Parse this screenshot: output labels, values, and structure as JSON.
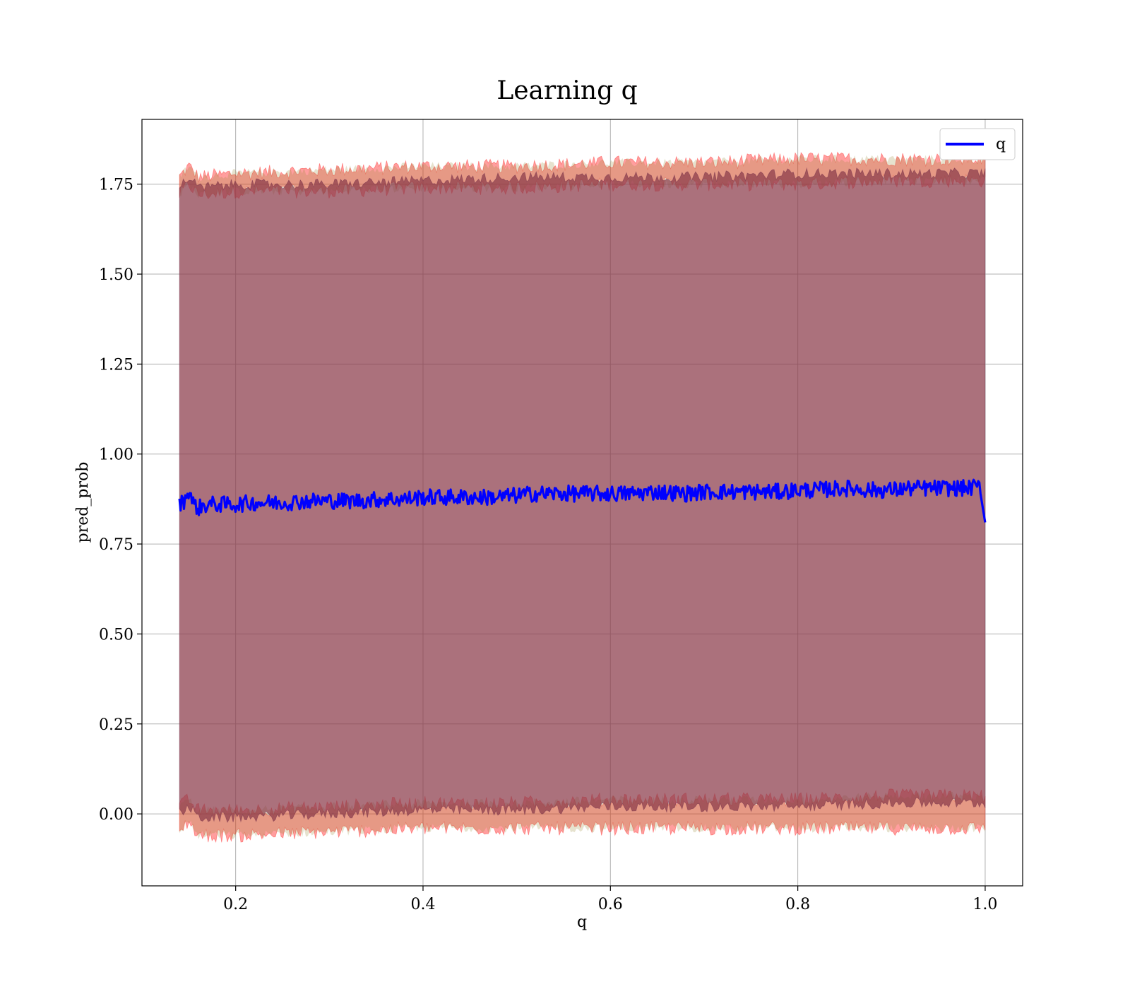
{
  "chart_data": {
    "type": "line",
    "title": "Learning q",
    "xlabel": "q",
    "ylabel": "pred_prob",
    "xlim": [
      0.1,
      1.04
    ],
    "ylim": [
      -0.2,
      1.93
    ],
    "xticks": [
      0.2,
      0.4,
      0.6,
      0.8,
      1.0
    ],
    "xtick_labels": [
      "0.2",
      "0.4",
      "0.6",
      "0.8",
      "1.0"
    ],
    "yticks": [
      0.0,
      0.25,
      0.5,
      0.75,
      1.0,
      1.25,
      1.5,
      1.75
    ],
    "ytick_labels": [
      "0.00",
      "0.25",
      "0.50",
      "0.75",
      "1.00",
      "1.25",
      "1.50",
      "1.75"
    ],
    "grid": true,
    "legend_position": "top-right",
    "series": [
      {
        "name": "q",
        "color": "#0000ff",
        "x": [
          0.14,
          0.145,
          0.15,
          0.155,
          0.16,
          0.17,
          0.18,
          0.2,
          0.22,
          0.25,
          0.28,
          0.3,
          0.33,
          0.36,
          0.38,
          0.4,
          0.42,
          0.45,
          0.48,
          0.5,
          0.52,
          0.55,
          0.58,
          0.6,
          0.62,
          0.65,
          0.68,
          0.7,
          0.72,
          0.75,
          0.78,
          0.8,
          0.82,
          0.85,
          0.88,
          0.9,
          0.92,
          0.95,
          0.98,
          0.995,
          1.0
        ],
        "y": [
          0.86,
          0.87,
          0.9,
          0.86,
          0.85,
          0.86,
          0.86,
          0.86,
          0.865,
          0.865,
          0.87,
          0.87,
          0.87,
          0.875,
          0.875,
          0.88,
          0.88,
          0.88,
          0.88,
          0.885,
          0.89,
          0.89,
          0.89,
          0.89,
          0.89,
          0.895,
          0.89,
          0.895,
          0.895,
          0.895,
          0.895,
          0.9,
          0.9,
          0.905,
          0.9,
          0.9,
          0.905,
          0.905,
          0.905,
          0.91,
          0.81
        ]
      }
    ],
    "bands": [
      {
        "role": "outer-upper",
        "color": "#ff0000",
        "x": [
          0.14,
          0.15,
          0.16,
          0.2,
          0.3,
          0.4,
          0.5,
          0.6,
          0.7,
          0.8,
          0.9,
          1.0
        ],
        "low": [
          1.72,
          1.75,
          1.72,
          1.73,
          1.73,
          1.74,
          1.74,
          1.75,
          1.75,
          1.75,
          1.76,
          1.76
        ],
        "high": [
          1.77,
          1.8,
          1.77,
          1.78,
          1.79,
          1.8,
          1.8,
          1.81,
          1.81,
          1.82,
          1.82,
          1.82
        ]
      },
      {
        "role": "outer-lower",
        "color": "#ff0000",
        "x": [
          0.14,
          0.15,
          0.16,
          0.2,
          0.3,
          0.4,
          0.5,
          0.6,
          0.7,
          0.8,
          0.9,
          1.0
        ],
        "low": [
          -0.05,
          -0.02,
          -0.06,
          -0.06,
          -0.05,
          -0.04,
          -0.04,
          -0.04,
          -0.04,
          -0.04,
          -0.04,
          -0.04
        ],
        "high": [
          0.02,
          0.04,
          0.01,
          0.01,
          0.02,
          0.03,
          0.03,
          0.04,
          0.04,
          0.04,
          0.05,
          0.05
        ]
      },
      {
        "role": "main",
        "color": "#8b3a4a",
        "x": [
          0.14,
          0.15,
          0.16,
          0.2,
          0.3,
          0.4,
          0.5,
          0.6,
          0.7,
          0.8,
          0.9,
          1.0
        ],
        "low": [
          0.0,
          0.02,
          -0.01,
          -0.01,
          0.0,
          0.01,
          0.01,
          0.02,
          0.02,
          0.02,
          0.03,
          0.03
        ],
        "high": [
          1.74,
          1.77,
          1.74,
          1.75,
          1.75,
          1.76,
          1.77,
          1.77,
          1.77,
          1.78,
          1.78,
          1.78
        ]
      }
    ]
  }
}
